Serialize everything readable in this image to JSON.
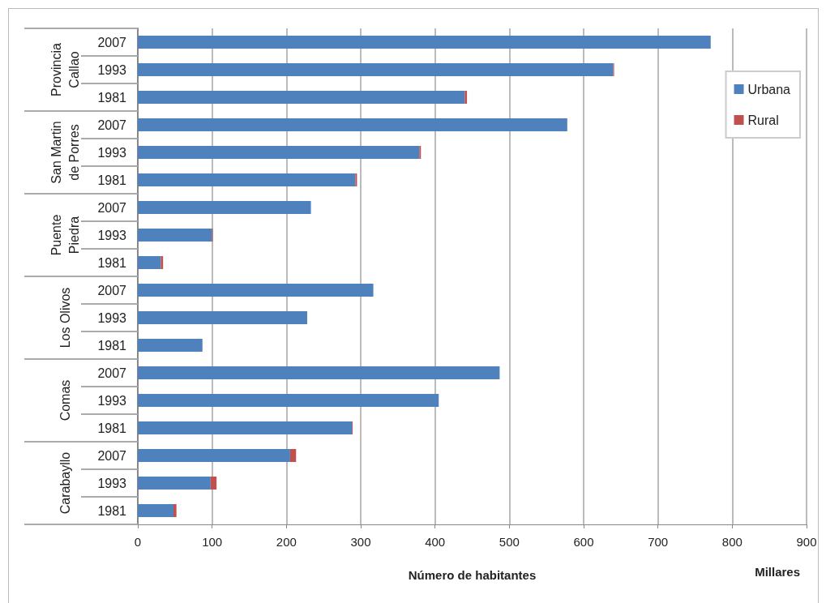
{
  "chart_data": {
    "type": "bar",
    "orientation": "horizontal",
    "stacked": true,
    "categories": [
      "2007",
      "1993",
      "1981",
      "2007",
      "1993",
      "1981",
      "2007",
      "1993",
      "1981",
      "2007",
      "1993",
      "1981",
      "2007",
      "1993",
      "1981",
      "2007",
      "1993",
      "1981"
    ],
    "series": [
      {
        "name": "Urbana",
        "color": "#4f81bd",
        "values": [
          771,
          640,
          440,
          578,
          379,
          293,
          233,
          100,
          31,
          317,
          228,
          87,
          487,
          405,
          288,
          205,
          98,
          48
        ]
      },
      {
        "name": "Rural",
        "color": "#c0504d",
        "values": [
          0,
          1,
          3,
          0,
          2,
          2,
          0,
          1,
          3,
          0,
          0,
          0,
          0,
          0,
          1,
          8,
          8,
          4
        ]
      }
    ],
    "xlabel": "Número de habitantes",
    "annotations": [
      "Provincia\nCallao",
      "San Martin\nde Porres",
      "Puente\nPiedra",
      "Los Olivos",
      "Comas",
      "Carabayllo",
      "Millares"
    ],
    "xlim": [
      0,
      900
    ],
    "xticks": [
      0,
      100,
      200,
      300,
      400,
      500,
      600,
      700,
      800,
      900
    ],
    "grid": "x",
    "legend": "top right"
  }
}
